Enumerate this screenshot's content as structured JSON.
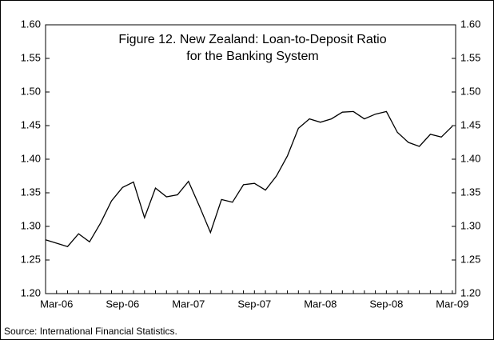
{
  "chart_data": {
    "type": "line",
    "title": [
      "Figure 12. New Zealand: Loan-to-Deposit Ratio",
      "for the Banking System"
    ],
    "source": "Source: International Financial Statistics.",
    "categories": [
      null,
      "Mar-06",
      null,
      null,
      null,
      null,
      null,
      "Sep-06",
      null,
      null,
      null,
      null,
      null,
      "Mar-07",
      null,
      null,
      null,
      null,
      null,
      "Sep-07",
      null,
      null,
      null,
      null,
      null,
      "Mar-08",
      null,
      null,
      null,
      null,
      null,
      "Sep-08",
      null,
      null,
      null,
      null,
      null,
      "Mar-09"
    ],
    "series": [
      {
        "color": "#000000",
        "values": [
          1.28,
          1.275,
          1.27,
          1.289,
          1.277,
          1.305,
          1.338,
          1.358,
          1.366,
          1.313,
          1.357,
          1.344,
          1.347,
          1.367,
          1.33,
          1.291,
          1.34,
          1.336,
          1.362,
          1.364,
          1.354,
          1.375,
          1.405,
          1.446,
          1.46,
          1.455,
          1.46,
          1.47,
          1.471,
          1.46,
          1.467,
          1.471,
          1.44,
          1.425,
          1.419,
          1.437,
          1.433,
          1.449
        ]
      }
    ],
    "ylim": [
      1.2,
      1.6
    ],
    "yticks": [
      {
        "value": 1.2,
        "label": "1.20"
      },
      1.25,
      {
        "value": 1.3,
        "label": "1.30"
      },
      1.35,
      {
        "value": 1.4,
        "label": "1.40"
      },
      1.45,
      {
        "value": 1.5,
        "label": "1.50"
      },
      1.55,
      {
        "value": 1.6,
        "label": "1.60"
      }
    ],
    "y2lim": [
      1.2,
      1.6
    ],
    "y2ticks": [
      {
        "value": 1.2,
        "label": "1.20"
      },
      1.25,
      {
        "value": 1.3,
        "label": "1.30"
      },
      1.35,
      {
        "value": 1.4,
        "label": "1.40"
      },
      1.45,
      {
        "value": 1.5,
        "label": "1.50"
      },
      1.55,
      {
        "value": 1.6,
        "label": "1.60"
      }
    ],
    "grid": false
  }
}
